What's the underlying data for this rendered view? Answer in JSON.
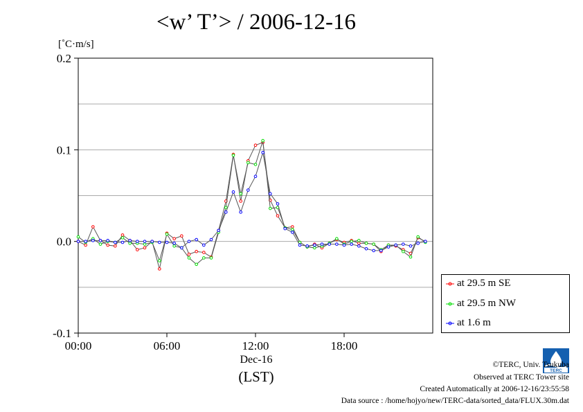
{
  "chart_data": {
    "type": "line",
    "title": "<w’ T’> / 2006-12-16",
    "ylabel": "[˚C·m/s]",
    "xlabel": "(LST)",
    "x_date_label": "Dec-16",
    "ylim": [
      -0.1,
      0.2
    ],
    "xlim": [
      0,
      24
    ],
    "yticks": [
      -0.1,
      0.0,
      0.1,
      0.2
    ],
    "ytick_labels": [
      "-0.1",
      "0.0",
      "0.1",
      "0.2"
    ],
    "xticks": [
      0,
      6,
      12,
      18
    ],
    "xtick_labels": [
      "00:00",
      "06:00",
      "12:00",
      "18:00"
    ],
    "grid": "horizontal",
    "x": [
      0.0,
      0.5,
      1.0,
      1.5,
      2.0,
      2.5,
      3.0,
      3.5,
      4.0,
      4.5,
      5.0,
      5.5,
      6.0,
      6.5,
      7.0,
      7.5,
      8.0,
      8.5,
      9.0,
      9.5,
      10.0,
      10.5,
      11.0,
      11.5,
      12.0,
      12.5,
      13.0,
      13.5,
      14.0,
      14.5,
      15.0,
      15.5,
      16.0,
      16.5,
      17.0,
      17.5,
      18.0,
      18.5,
      19.0,
      19.5,
      20.0,
      20.5,
      21.0,
      21.5,
      22.0,
      22.5,
      23.0,
      23.5
    ],
    "series": [
      {
        "name": "at 29.5 m SE",
        "color": "#ff0000",
        "values": [
          0.0,
          -0.004,
          0.016,
          0.001,
          -0.004,
          -0.005,
          0.007,
          0.001,
          -0.009,
          -0.007,
          0.0,
          -0.03,
          0.009,
          0.003,
          0.006,
          -0.014,
          -0.011,
          -0.012,
          -0.017,
          0.012,
          0.044,
          0.095,
          0.044,
          0.088,
          0.105,
          0.108,
          0.045,
          0.028,
          0.015,
          0.016,
          -0.001,
          -0.006,
          -0.003,
          -0.007,
          -0.002,
          0.002,
          -0.001,
          0.001,
          -0.002,
          -0.002,
          -0.003,
          -0.011,
          -0.004,
          -0.005,
          -0.009,
          -0.013,
          0.004,
          0.0
        ]
      },
      {
        "name": "at 29.5 m NW",
        "color": "#00dd00",
        "values": [
          0.005,
          -0.001,
          0.003,
          -0.003,
          0.0,
          -0.001,
          0.004,
          -0.002,
          -0.002,
          -0.003,
          -0.001,
          -0.021,
          0.008,
          -0.005,
          -0.007,
          -0.018,
          -0.025,
          -0.018,
          -0.018,
          0.01,
          0.037,
          0.094,
          0.052,
          0.086,
          0.084,
          0.11,
          0.036,
          0.037,
          0.015,
          0.013,
          -0.001,
          -0.006,
          -0.007,
          -0.005,
          -0.002,
          0.003,
          -0.003,
          0.0,
          0.001,
          -0.002,
          -0.003,
          -0.009,
          -0.004,
          -0.004,
          -0.011,
          -0.017,
          0.005,
          -0.001
        ]
      },
      {
        "name": "at 1.6 m",
        "color": "#0000ff",
        "values": [
          0.0,
          0.0,
          0.001,
          0.001,
          0.001,
          -0.001,
          -0.001,
          0.001,
          0.0,
          0.0,
          0.0,
          -0.001,
          -0.001,
          -0.002,
          -0.007,
          0.0,
          0.002,
          -0.004,
          0.002,
          0.012,
          0.032,
          0.054,
          0.032,
          0.056,
          0.071,
          0.097,
          0.052,
          0.041,
          0.014,
          0.01,
          -0.004,
          -0.005,
          -0.004,
          -0.003,
          -0.003,
          -0.003,
          -0.004,
          -0.003,
          -0.005,
          -0.008,
          -0.01,
          -0.01,
          -0.006,
          -0.004,
          -0.003,
          -0.005,
          -0.002,
          0.0
        ]
      }
    ]
  },
  "legend": {
    "items": [
      {
        "label": "at 29.5 m SE",
        "color": "#ff0000"
      },
      {
        "label": "at 29.5 m NW",
        "color": "#00dd00"
      },
      {
        "label": "at 1.6 m",
        "color": "#0000ff"
      }
    ]
  },
  "footer": {
    "copyright": "©TERC, Univ. Tsukuba",
    "observed": "Observed at TERC Tower site",
    "created": "Created Automatically at 2006-12-16/23:55:58",
    "source": "Data source : /home/hojyo/new/TERC-data/sorted_data/FLUX.30m.dat",
    "logo_text": "TERC"
  }
}
